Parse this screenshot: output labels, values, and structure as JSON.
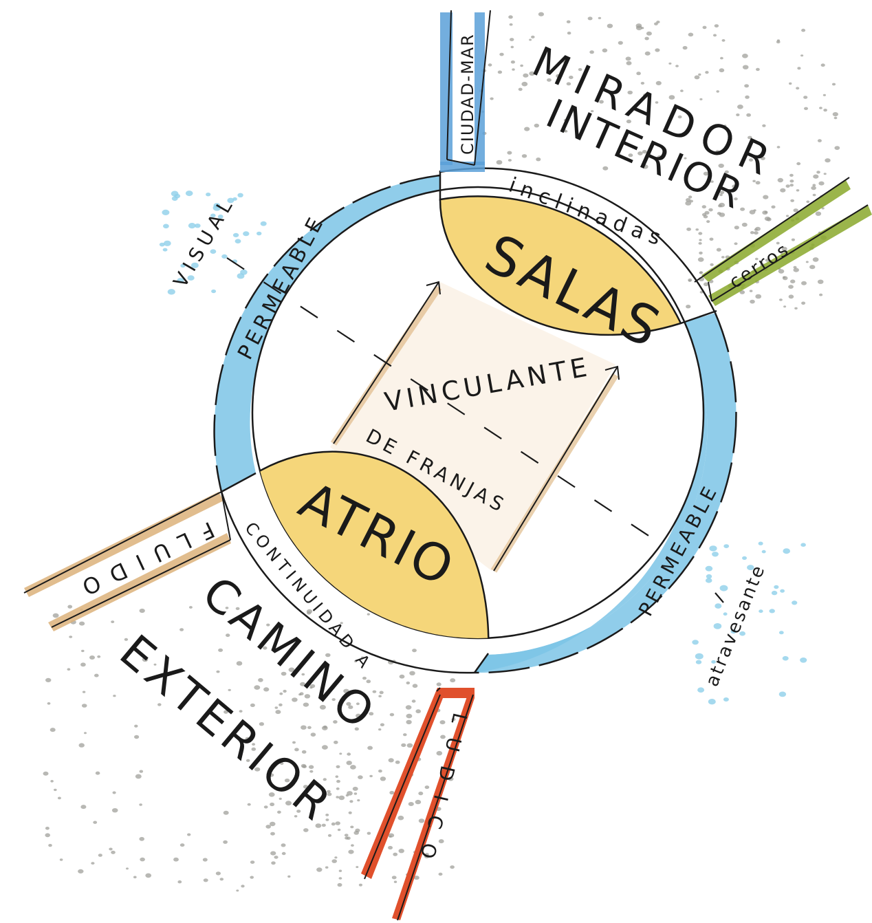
{
  "labels": {
    "mirador": "MIRADOR",
    "interior": "INTERIOR",
    "ciudad_mar": "CIUDAD-MAR",
    "inclinadas": "inclinadas",
    "salas": "SALAS",
    "cerros": "cerros",
    "visual": "VISUAL",
    "permeable_top": "PERMEABLE",
    "vinculante": "VINCULANTE",
    "de_franjas": "DE FRANJAS",
    "atrio": "ATRIO",
    "fluido": "FLUIDO",
    "continuidad": "CONTINUIDAD A",
    "permeable_bottom": "PERMEABLE",
    "atravesante": "atravesante",
    "camino": "CAMINO",
    "exterior": "EXTERIOR",
    "ludico": "LUDICO"
  },
  "colors": {
    "ring_blue": "#7cc4e6",
    "lens_yellow": "#f5d67a",
    "path_tan": "#dcb27a",
    "ciudad_blue": "#5aa0d8",
    "cerros_green": "#8aa82c",
    "ludico_red": "#e0502c",
    "dots_gray": "#9a9a94",
    "dots_blue": "#8ecfea",
    "dots_orange": "#e3b98c",
    "ink": "#1a1a1a"
  }
}
